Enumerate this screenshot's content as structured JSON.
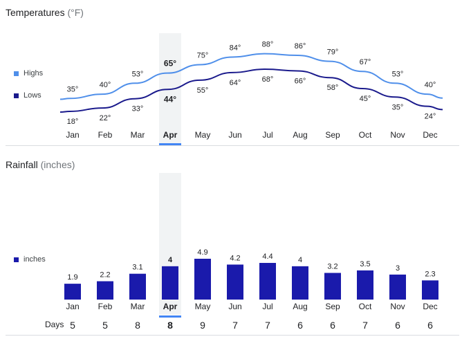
{
  "temperatures": {
    "title": "Temperatures",
    "unit": "(°F)",
    "legend_highs": "Highs",
    "legend_lows": "Lows",
    "highs_color": "#4f8fea",
    "lows_color": "#1a1a8c"
  },
  "rainfall": {
    "title": "Rainfall",
    "unit": "(inches)",
    "legend": "inches",
    "bar_color": "#1a1aab",
    "days_label": "Days"
  },
  "selected_month": "Apr",
  "accent_color": "#4285f4",
  "chart_data": [
    {
      "type": "line",
      "title": "Temperatures (°F)",
      "categories": [
        "Jan",
        "Feb",
        "Mar",
        "Apr",
        "May",
        "Jun",
        "Jul",
        "Aug",
        "Sep",
        "Oct",
        "Nov",
        "Dec"
      ],
      "series": [
        {
          "name": "Highs",
          "values": [
            35,
            40,
            53,
            65,
            75,
            84,
            88,
            86,
            79,
            67,
            53,
            40
          ],
          "labels": [
            "35°",
            "40°",
            "53°",
            "65°",
            "75°",
            "84°",
            "88°",
            "86°",
            "79°",
            "67°",
            "53°",
            "40°"
          ]
        },
        {
          "name": "Lows",
          "values": [
            18,
            22,
            33,
            44,
            55,
            64,
            68,
            66,
            58,
            45,
            35,
            24
          ],
          "labels": [
            "18°",
            "22°",
            "33°",
            "44°",
            "55°",
            "64°",
            "68°",
            "66°",
            "58°",
            "45°",
            "35°",
            "24°"
          ]
        }
      ]
    },
    {
      "type": "bar",
      "title": "Rainfall (inches)",
      "categories": [
        "Jan",
        "Feb",
        "Mar",
        "Apr",
        "May",
        "Jun",
        "Jul",
        "Aug",
        "Sep",
        "Oct",
        "Nov",
        "Dec"
      ],
      "series": [
        {
          "name": "inches",
          "values": [
            1.9,
            2.2,
            3.1,
            4,
            4.9,
            4.2,
            4.4,
            4,
            3.2,
            3.5,
            3,
            2.3
          ],
          "labels": [
            "1.9",
            "2.2",
            "3.1",
            "4",
            "4.9",
            "4.2",
            "4.4",
            "4",
            "3.2",
            "3.5",
            "3",
            "2.3"
          ]
        }
      ],
      "days": [
        "5",
        "5",
        "8",
        "8",
        "9",
        "7",
        "7",
        "6",
        "6",
        "7",
        "6",
        "6"
      ]
    }
  ]
}
